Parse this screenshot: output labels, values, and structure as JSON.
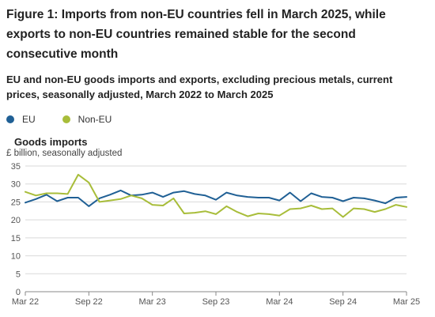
{
  "figure": {
    "title": "Figure 1: Imports from non-EU countries fell in March 2025, while exports to non-EU countries remained stable for the second consecutive month",
    "subtitle": "EU and non-EU goods imports and exports, excluding precious metals, current prices, seasonally adjusted, March 2022 to March 2025"
  },
  "legend": [
    {
      "label": "EU",
      "color": "#206095"
    },
    {
      "label": "Non-EU",
      "color": "#A8BD3A"
    }
  ],
  "panel": {
    "title": "Goods imports",
    "units": "£ billion, seasonally adjusted"
  },
  "colors": {
    "eu": "#206095",
    "non_eu": "#A8BD3A",
    "grid": "#d9d9d9",
    "axis": "#888888"
  },
  "chart_data": {
    "type": "line",
    "title": "Goods imports",
    "ylabel": "£ billion, seasonally adjusted",
    "xlabel": "",
    "ylim": [
      0,
      35
    ],
    "yticks": [
      0,
      5,
      10,
      15,
      20,
      25,
      30,
      35
    ],
    "grid": true,
    "legend_position": "top-left",
    "x": [
      "2022-03",
      "2022-04",
      "2022-05",
      "2022-06",
      "2022-07",
      "2022-08",
      "2022-09",
      "2022-10",
      "2022-11",
      "2022-12",
      "2023-01",
      "2023-02",
      "2023-03",
      "2023-04",
      "2023-05",
      "2023-06",
      "2023-07",
      "2023-08",
      "2023-09",
      "2023-10",
      "2023-11",
      "2023-12",
      "2024-01",
      "2024-02",
      "2024-03",
      "2024-04",
      "2024-05",
      "2024-06",
      "2024-07",
      "2024-08",
      "2024-09",
      "2024-10",
      "2024-11",
      "2024-12",
      "2025-01",
      "2025-02",
      "2025-03"
    ],
    "xticks": [
      {
        "value": "2022-03",
        "label": "Mar 22"
      },
      {
        "value": "2022-09",
        "label": "Sep 22"
      },
      {
        "value": "2023-03",
        "label": "Mar 23"
      },
      {
        "value": "2023-09",
        "label": "Sep 23"
      },
      {
        "value": "2024-03",
        "label": "Mar 24"
      },
      {
        "value": "2024-09",
        "label": "Sep 24"
      },
      {
        "value": "2025-03",
        "label": "Mar 25"
      }
    ],
    "series": [
      {
        "name": "EU",
        "key": "eu",
        "values": [
          24.8,
          25.8,
          27.0,
          25.2,
          26.2,
          26.2,
          23.8,
          26.0,
          27.0,
          28.2,
          26.8,
          27.0,
          27.6,
          26.4,
          27.6,
          28.0,
          27.2,
          26.8,
          25.6,
          27.6,
          26.8,
          26.4,
          26.2,
          26.2,
          25.4,
          27.6,
          25.2,
          27.4,
          26.4,
          26.2,
          25.2,
          26.2,
          26.0,
          25.4,
          24.6,
          26.2,
          26.4
        ]
      },
      {
        "name": "Non-EU",
        "key": "non_eu",
        "values": [
          27.8,
          26.8,
          27.4,
          27.4,
          27.2,
          32.6,
          30.4,
          25.0,
          25.4,
          25.8,
          26.8,
          26.0,
          24.2,
          24.0,
          26.0,
          21.8,
          22.0,
          22.4,
          21.6,
          23.8,
          22.2,
          21.0,
          21.8,
          21.6,
          21.2,
          23.0,
          23.2,
          24.0,
          23.0,
          23.2,
          20.8,
          23.2,
          23.0,
          22.2,
          23.0,
          24.2,
          23.6
        ]
      }
    ]
  }
}
